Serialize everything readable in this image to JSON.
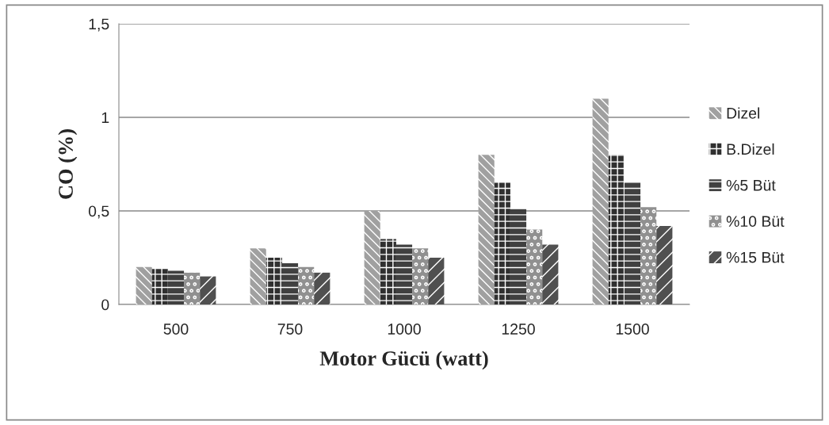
{
  "chart_data": {
    "type": "bar",
    "xlabel": "Motor Gücü (watt)",
    "ylabel": "CO (%)",
    "categories": [
      "500",
      "750",
      "1000",
      "1250",
      "1500"
    ],
    "series": [
      {
        "name": "Dizel",
        "color": "#a0a0a0",
        "values": [
          0.2,
          0.3,
          0.5,
          0.8,
          1.1
        ]
      },
      {
        "name": "B.Dizel",
        "color": "#303030",
        "values": [
          0.19,
          0.25,
          0.35,
          0.65,
          0.8
        ]
      },
      {
        "name": "%5 Büt",
        "color": "#404040",
        "values": [
          0.18,
          0.22,
          0.32,
          0.51,
          0.65
        ]
      },
      {
        "name": "%10 Büt",
        "color": "#909090",
        "values": [
          0.17,
          0.2,
          0.3,
          0.4,
          0.52
        ]
      },
      {
        "name": "%15 Büt",
        "color": "#505050",
        "values": [
          0.15,
          0.17,
          0.25,
          0.32,
          0.42
        ]
      }
    ],
    "ylim": [
      0,
      1.5
    ],
    "yticks": [
      {
        "value": 0,
        "label": "0"
      },
      {
        "value": 0.5,
        "label": "0,5"
      },
      {
        "value": 1,
        "label": "1"
      },
      {
        "value": 1.5,
        "label": "1,5"
      }
    ],
    "grid": "y",
    "legend": "right"
  }
}
